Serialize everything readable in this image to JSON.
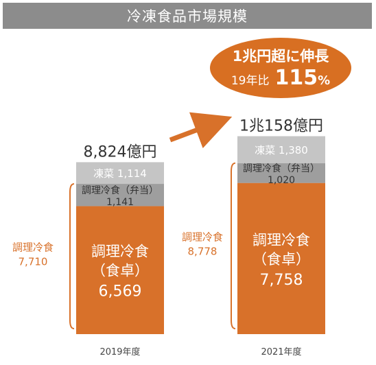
{
  "title": "冷凍食品市場規模",
  "callout": {
    "line1": "1兆円超に伸長",
    "prefix": "19年比",
    "value": "115",
    "unit": "%"
  },
  "colors": {
    "orange": "#d8712a",
    "light_gray": "#c5c5c5",
    "mid_gray": "#9e9e9e",
    "title_gray": "#8c8c8c",
    "label_orange": "#d8712a"
  },
  "chart_data": {
    "type": "bar",
    "stacked": true,
    "title": "冷凍食品市場規模",
    "categories": [
      "2019年度",
      "2021年度"
    ],
    "series": [
      {
        "name": "調理冷食（食卓）",
        "lines": [
          "調理冷食",
          "（食卓）"
        ],
        "values": [
          6569,
          7758
        ],
        "labels": [
          "6,569",
          "7,758"
        ],
        "color": "#d8712a",
        "text_color": "#ffffff"
      },
      {
        "name": "調理冷食（弁当）",
        "lines": [
          "調理冷食（弁当）"
        ],
        "values": [
          1141,
          1020
        ],
        "labels": [
          "1,141",
          "1,020"
        ],
        "color": "#9e9e9e",
        "text_color": "#333333"
      },
      {
        "name": "凍菜",
        "lines": [
          "凍菜"
        ],
        "values": [
          1114,
          1380
        ],
        "labels": [
          "1,114",
          "1,380"
        ],
        "color": "#c5c5c5",
        "text_color": "#ffffff"
      }
    ],
    "totals": [
      "8,824億円",
      "1兆158億円"
    ],
    "total_values": [
      8824,
      10158
    ],
    "bracket_labels": [
      {
        "name": "調理冷食",
        "value": "7,710"
      },
      {
        "name": "調理冷食",
        "value": "8,778"
      }
    ]
  }
}
